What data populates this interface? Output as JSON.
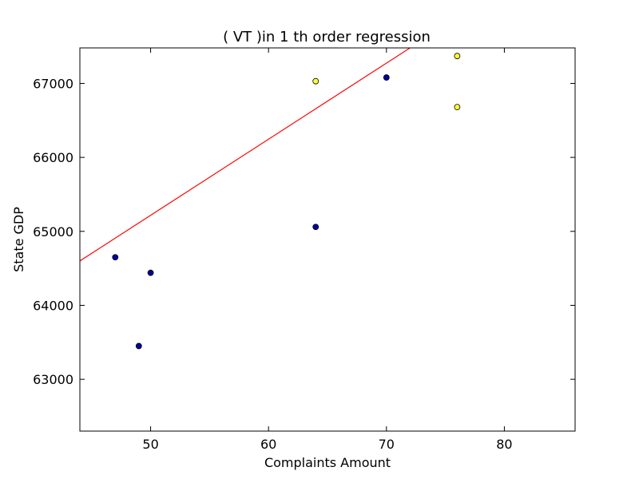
{
  "chart_data": {
    "type": "scatter",
    "title": "(  VT  )in 1 th order regression",
    "xlabel": "Complaints Amount",
    "ylabel": "State GDP",
    "xlim": [
      44,
      86
    ],
    "ylim": [
      62300,
      67480
    ],
    "xticks": [
      50,
      60,
      70,
      80
    ],
    "yticks": [
      63000,
      64000,
      65000,
      66000,
      67000
    ],
    "xtick_labels": [
      "50",
      "60",
      "70",
      "80"
    ],
    "ytick_labels": [
      "63000",
      "64000",
      "65000",
      "66000",
      "67000"
    ],
    "grid": false,
    "series": [
      {
        "marker_color": "#0000a0",
        "points": [
          [
            47,
            64650
          ],
          [
            49,
            63450
          ],
          [
            50,
            64440
          ],
          [
            64,
            65060
          ],
          [
            70,
            67080
          ]
        ]
      },
      {
        "marker_color": "#ffff33",
        "points": [
          [
            64,
            67030
          ],
          [
            76,
            67370
          ],
          [
            76,
            66680
          ]
        ]
      }
    ],
    "regression_line": {
      "color": "#ff0000",
      "points": [
        [
          44,
          64600
        ],
        [
          72,
          67480
        ]
      ]
    }
  }
}
